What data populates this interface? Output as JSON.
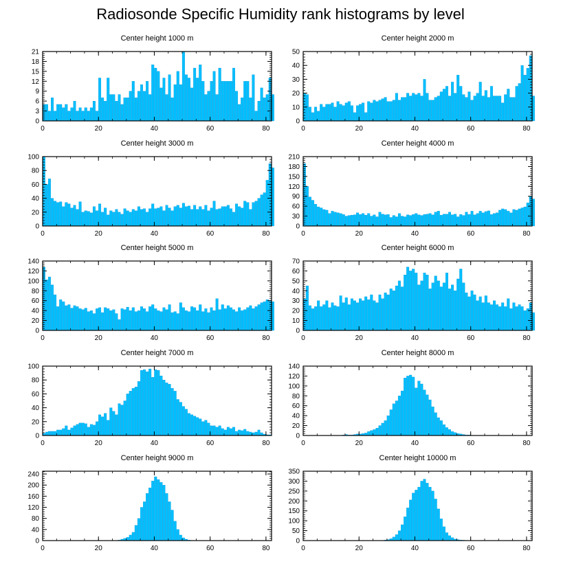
{
  "title": "Radiosonde Specific Humidity rank histograms by level",
  "colors": {
    "bar": "#00bfff",
    "bar_edge": "#0a8fd0",
    "axis": "#000000"
  },
  "chart_data": [
    {
      "type": "bar",
      "title": "Center height 1000 m",
      "xlim": [
        0,
        82
      ],
      "ylim": [
        0,
        21
      ],
      "xticks": [
        0,
        20,
        40,
        60,
        80
      ],
      "yticks": [
        0,
        3,
        6,
        9,
        12,
        15,
        18,
        21
      ],
      "values": [
        5,
        5,
        3,
        7,
        3,
        5,
        5,
        4,
        5,
        3,
        4,
        6,
        3,
        4,
        3,
        4,
        3,
        4,
        6,
        3,
        13,
        7,
        6,
        13,
        8,
        8,
        6,
        8,
        5,
        7,
        7,
        9,
        12,
        7,
        9,
        11,
        9,
        12,
        8,
        17,
        16,
        15,
        10,
        13,
        8,
        14,
        7,
        11,
        15,
        11,
        21,
        14,
        13,
        10,
        16,
        13,
        17,
        12,
        8,
        9,
        12,
        15,
        8,
        16,
        12,
        12,
        12,
        12,
        16,
        9,
        5,
        7,
        12,
        12,
        7,
        14,
        3,
        6,
        10,
        7,
        8,
        13,
        8
      ],
      "grid": false
    },
    {
      "type": "bar",
      "title": "Center height 2000 m",
      "xlim": [
        0,
        82
      ],
      "ylim": [
        0,
        50
      ],
      "xticks": [
        0,
        20,
        40,
        60,
        80
      ],
      "yticks": [
        0,
        10,
        20,
        30,
        40,
        50
      ],
      "values": [
        20,
        19,
        10,
        6,
        10,
        7,
        12,
        10,
        12,
        12,
        13,
        10,
        14,
        12,
        11,
        13,
        14,
        11,
        6,
        11,
        12,
        13,
        6,
        14,
        13,
        15,
        14,
        15,
        16,
        17,
        14,
        14,
        15,
        20,
        15,
        17,
        17,
        20,
        18,
        20,
        19,
        20,
        18,
        30,
        20,
        15,
        15,
        17,
        18,
        21,
        23,
        25,
        18,
        28,
        20,
        33,
        25,
        19,
        17,
        21,
        15,
        18,
        20,
        28,
        18,
        22,
        17,
        25,
        18,
        18,
        18,
        13,
        19,
        23,
        17,
        17,
        25,
        27,
        40,
        33,
        38,
        47,
        18
      ],
      "grid": false
    },
    {
      "type": "bar",
      "title": "Center height 3000 m",
      "xlim": [
        0,
        82
      ],
      "ylim": [
        0,
        100
      ],
      "xticks": [
        0,
        20,
        40,
        60,
        80
      ],
      "yticks": [
        0,
        20,
        40,
        60,
        80,
        100
      ],
      "values": [
        100,
        60,
        68,
        40,
        36,
        34,
        35,
        28,
        34,
        32,
        26,
        30,
        24,
        35,
        20,
        22,
        21,
        19,
        28,
        22,
        32,
        20,
        26,
        16,
        22,
        20,
        24,
        20,
        17,
        25,
        22,
        20,
        24,
        22,
        28,
        24,
        25,
        20,
        25,
        32,
        25,
        26,
        28,
        22,
        30,
        26,
        22,
        28,
        30,
        26,
        33,
        28,
        29,
        24,
        30,
        24,
        28,
        24,
        30,
        22,
        26,
        36,
        24,
        25,
        28,
        28,
        30,
        25,
        20,
        32,
        28,
        26,
        36,
        34,
        24,
        34,
        36,
        40,
        45,
        48,
        66,
        90,
        84
      ],
      "grid": false
    },
    {
      "type": "bar",
      "title": "Center height 4000 m",
      "xlim": [
        0,
        82
      ],
      "ylim": [
        0,
        210
      ],
      "xticks": [
        0,
        20,
        40,
        60,
        80
      ],
      "yticks": [
        0,
        30,
        60,
        90,
        120,
        150,
        180,
        210
      ],
      "values": [
        189,
        120,
        88,
        78,
        66,
        58,
        55,
        50,
        48,
        38,
        45,
        42,
        40,
        38,
        35,
        30,
        32,
        33,
        34,
        40,
        35,
        38,
        33,
        38,
        30,
        34,
        28,
        42,
        36,
        34,
        35,
        26,
        32,
        28,
        38,
        30,
        28,
        34,
        32,
        35,
        38,
        34,
        32,
        35,
        36,
        38,
        34,
        42,
        45,
        33,
        36,
        36,
        42,
        34,
        36,
        28,
        35,
        32,
        42,
        35,
        45,
        34,
        38,
        45,
        40,
        44,
        46,
        35,
        38,
        40,
        48,
        52,
        50,
        45,
        40,
        50,
        48,
        52,
        55,
        58,
        70,
        90,
        82
      ],
      "grid": false
    },
    {
      "type": "bar",
      "title": "Center height 5000 m",
      "xlim": [
        0,
        82
      ],
      "ylim": [
        0,
        140
      ],
      "xticks": [
        0,
        20,
        40,
        60,
        80
      ],
      "yticks": [
        0,
        20,
        40,
        60,
        80,
        100,
        120,
        140
      ],
      "values": [
        128,
        102,
        108,
        92,
        72,
        48,
        62,
        58,
        50,
        52,
        45,
        50,
        48,
        44,
        42,
        45,
        38,
        40,
        34,
        44,
        46,
        36,
        46,
        44,
        40,
        42,
        34,
        22,
        44,
        42,
        47,
        40,
        46,
        38,
        40,
        48,
        44,
        38,
        48,
        52,
        44,
        40,
        38,
        46,
        42,
        52,
        36,
        38,
        34,
        56,
        46,
        40,
        38,
        48,
        46,
        40,
        52,
        38,
        44,
        36,
        46,
        40,
        64,
        42,
        52,
        44,
        50,
        46,
        42,
        38,
        46,
        40,
        42,
        46,
        50,
        44,
        48,
        52,
        56,
        58,
        62,
        60,
        58
      ],
      "grid": false
    },
    {
      "type": "bar",
      "title": "Center height 6000 m",
      "xlim": [
        0,
        82
      ],
      "ylim": [
        0,
        70
      ],
      "xticks": [
        0,
        20,
        40,
        60,
        80
      ],
      "yticks": [
        0,
        10,
        20,
        30,
        40,
        50,
        60,
        70
      ],
      "values": [
        32,
        45,
        25,
        22,
        24,
        30,
        24,
        26,
        30,
        23,
        28,
        25,
        24,
        35,
        28,
        33,
        26,
        32,
        30,
        28,
        32,
        30,
        34,
        31,
        36,
        30,
        28,
        36,
        32,
        38,
        36,
        42,
        40,
        45,
        50,
        44,
        56,
        64,
        60,
        62,
        58,
        46,
        50,
        58,
        56,
        42,
        48,
        55,
        50,
        44,
        48,
        58,
        42,
        46,
        40,
        52,
        62,
        48,
        38,
        34,
        40,
        36,
        30,
        34,
        28,
        35,
        28,
        26,
        30,
        26,
        24,
        28,
        24,
        32,
        22,
        28,
        24,
        26,
        24,
        20,
        22,
        28,
        18
      ],
      "grid": false
    },
    {
      "type": "bar",
      "title": "Center height 7000 m",
      "xlim": [
        0,
        82
      ],
      "ylim": [
        0,
        100
      ],
      "xticks": [
        0,
        20,
        40,
        60,
        80
      ],
      "yticks": [
        0,
        20,
        40,
        60,
        80,
        100
      ],
      "values": [
        3,
        5,
        6,
        6,
        6,
        8,
        8,
        10,
        14,
        8,
        11,
        14,
        16,
        18,
        18,
        17,
        12,
        16,
        15,
        20,
        30,
        27,
        32,
        22,
        40,
        35,
        30,
        46,
        44,
        50,
        60,
        64,
        68,
        70,
        78,
        94,
        95,
        92,
        96,
        84,
        95,
        94,
        86,
        80,
        76,
        74,
        68,
        64,
        52,
        48,
        42,
        38,
        32,
        30,
        28,
        26,
        24,
        20,
        22,
        18,
        14,
        14,
        12,
        14,
        10,
        8,
        12,
        10,
        12,
        6,
        8,
        7,
        9,
        6,
        5,
        4,
        5,
        8,
        4,
        2,
        1,
        1,
        0
      ],
      "grid": false
    },
    {
      "type": "bar",
      "title": "Center height 8000 m",
      "xlim": [
        0,
        82
      ],
      "ylim": [
        0,
        140
      ],
      "xticks": [
        0,
        20,
        40,
        60,
        80
      ],
      "yticks": [
        0,
        20,
        40,
        60,
        80,
        100,
        120,
        140
      ],
      "values": [
        0,
        0,
        0,
        0,
        0,
        0,
        0,
        0,
        0,
        0,
        0,
        0,
        0,
        0,
        1,
        2,
        1,
        1,
        2,
        3,
        3,
        4,
        5,
        8,
        10,
        12,
        15,
        20,
        25,
        30,
        40,
        52,
        64,
        70,
        80,
        90,
        116,
        120,
        122,
        118,
        96,
        110,
        104,
        92,
        82,
        72,
        58,
        46,
        36,
        30,
        22,
        16,
        12,
        8,
        6,
        4,
        3,
        2,
        1,
        1,
        0,
        0,
        0,
        0,
        0,
        0,
        0,
        0,
        0,
        0,
        0,
        0,
        0,
        0,
        0,
        0,
        0,
        0,
        0,
        0,
        0,
        0,
        0
      ],
      "grid": false
    },
    {
      "type": "bar",
      "title": "Center height 9000 m",
      "xlim": [
        0,
        82
      ],
      "ylim": [
        0,
        250
      ],
      "xticks": [
        0,
        20,
        40,
        60,
        80
      ],
      "yticks": [
        0,
        40,
        80,
        120,
        160,
        200,
        240
      ],
      "values": [
        0,
        0,
        0,
        0,
        0,
        0,
        0,
        0,
        0,
        0,
        0,
        0,
        0,
        0,
        0,
        0,
        0,
        0,
        0,
        0,
        0,
        0,
        0,
        0,
        0,
        0,
        0,
        2,
        5,
        8,
        12,
        20,
        30,
        55,
        80,
        120,
        140,
        170,
        190,
        215,
        230,
        220,
        210,
        200,
        170,
        140,
        110,
        70,
        40,
        20,
        10,
        5,
        2,
        1,
        0,
        0,
        0,
        0,
        0,
        0,
        0,
        0,
        0,
        0,
        0,
        0,
        0,
        0,
        0,
        0,
        0,
        0,
        0,
        0,
        0,
        0,
        0,
        0,
        0,
        0,
        0,
        0,
        0
      ],
      "grid": false
    },
    {
      "type": "bar",
      "title": "Center height 10000 m",
      "xlim": [
        0,
        82
      ],
      "ylim": [
        0,
        350
      ],
      "xticks": [
        0,
        20,
        40,
        60,
        80
      ],
      "yticks": [
        0,
        50,
        100,
        150,
        200,
        250,
        300,
        350
      ],
      "values": [
        0,
        0,
        0,
        0,
        0,
        0,
        0,
        0,
        0,
        0,
        0,
        0,
        0,
        0,
        0,
        0,
        0,
        0,
        0,
        0,
        0,
        0,
        0,
        0,
        0,
        0,
        0,
        0,
        1,
        3,
        5,
        10,
        18,
        30,
        50,
        80,
        120,
        165,
        205,
        240,
        255,
        270,
        300,
        310,
        290,
        270,
        250,
        210,
        160,
        110,
        70,
        40,
        25,
        15,
        8,
        5,
        3,
        2,
        1,
        0,
        0,
        0,
        0,
        0,
        0,
        0,
        0,
        0,
        0,
        0,
        0,
        0,
        0,
        0,
        0,
        0,
        0,
        0,
        0,
        0,
        0,
        0,
        0
      ],
      "grid": false
    }
  ]
}
